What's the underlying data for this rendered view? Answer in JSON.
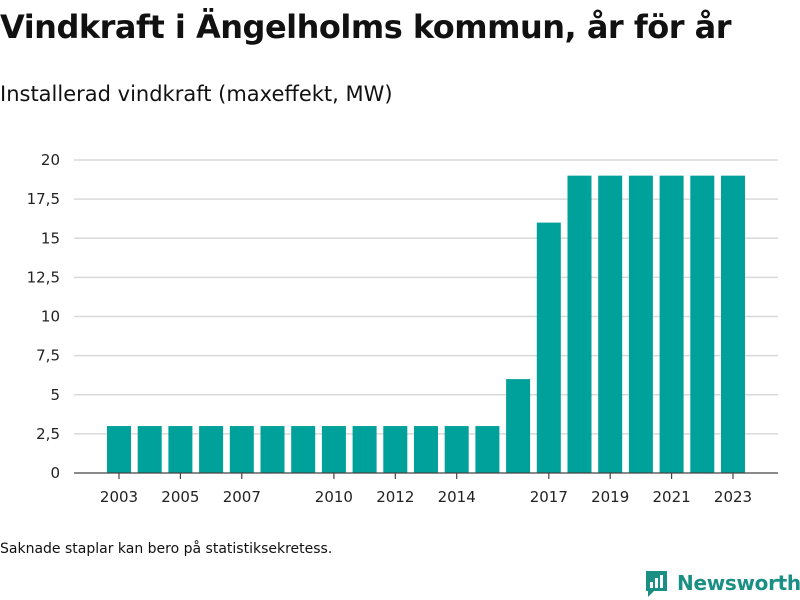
{
  "header": {
    "title": "Vindkraft i Ängelholms kommun, år för år",
    "subtitle": "Installerad vindkraft (maxeffekt, MW)"
  },
  "footer": {
    "note": "Saknade staplar kan bero på statistiksekretess.",
    "brand": "Newsworthy"
  },
  "colors": {
    "bar": "#00a19a",
    "brand": "#1a8f84",
    "grid": "#d9d9d9"
  },
  "chart_data": {
    "type": "bar",
    "categories": [
      "2003",
      "2004",
      "2005",
      "2006",
      "2007",
      "2008",
      "2009",
      "2010",
      "2011",
      "2012",
      "2013",
      "2014",
      "2015",
      "2016",
      "2017",
      "2018",
      "2019",
      "2020",
      "2021",
      "2022",
      "2023"
    ],
    "values": [
      3,
      3,
      3,
      3,
      3,
      3,
      3,
      3,
      3,
      3,
      3,
      3,
      3,
      6,
      16,
      19,
      19,
      19,
      19,
      19,
      19
    ],
    "x_tick_labels": [
      "2003",
      "2005",
      "2007",
      "2010",
      "2012",
      "2014",
      "2017",
      "2019",
      "2021",
      "2023"
    ],
    "y_ticks": [
      0,
      2.5,
      5,
      7.5,
      10,
      12.5,
      15,
      17.5,
      20
    ],
    "y_tick_labels": [
      "0",
      "2,5",
      "5",
      "7,5",
      "10",
      "12,5",
      "15",
      "17,5",
      "20"
    ],
    "ylim": [
      0,
      20
    ],
    "grid": true,
    "legend": "none",
    "xlabel": "",
    "ylabel": ""
  }
}
